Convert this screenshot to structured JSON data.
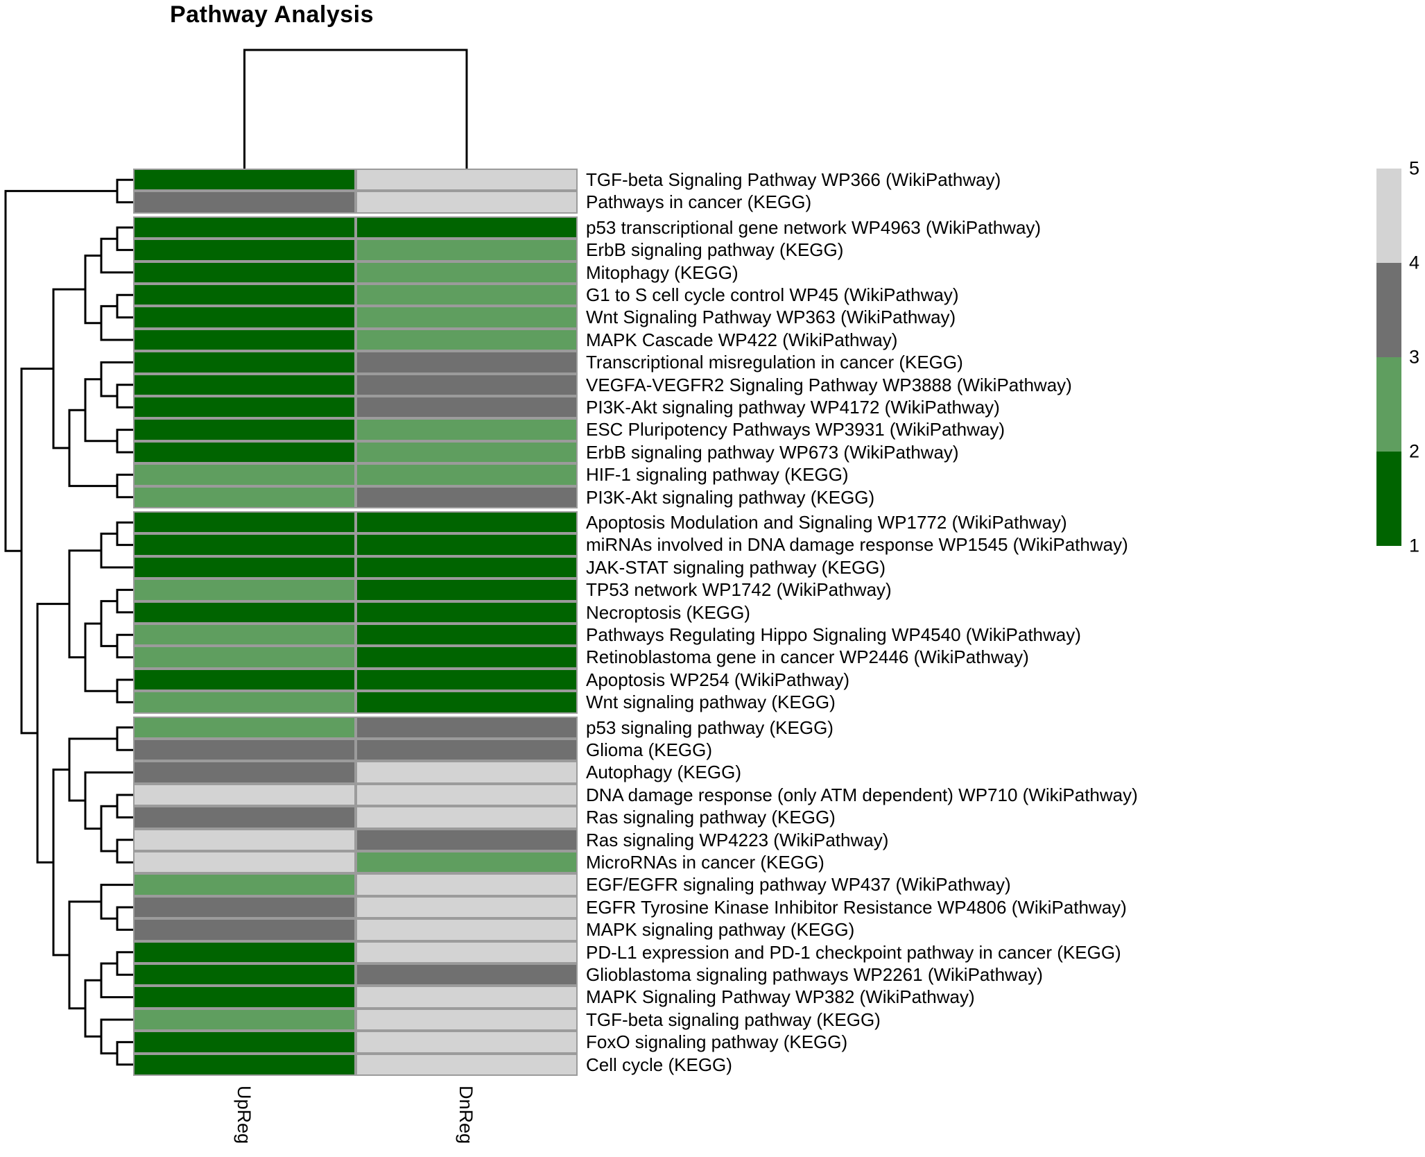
{
  "title": "Pathway Analysis",
  "columns": [
    "UpReg",
    "DnReg"
  ],
  "legend": {
    "ticks": [
      5,
      4,
      3,
      2,
      1
    ],
    "position": "right"
  },
  "chart_data": {
    "type": "heatmap",
    "title": "Pathway Analysis",
    "columns": [
      "UpReg",
      "DnReg"
    ],
    "rows": [
      {
        "label": "TGF-beta Signaling Pathway WP366 (WikiPathway)",
        "values": [
          1.5,
          4.5
        ]
      },
      {
        "label": "Pathways in cancer (KEGG)",
        "values": [
          3.5,
          4.5
        ]
      },
      {
        "label": "p53 transcriptional gene network WP4963 (WikiPathway)",
        "values": [
          1.5,
          1.5
        ]
      },
      {
        "label": "ErbB signaling pathway (KEGG)",
        "values": [
          1.5,
          2.5
        ]
      },
      {
        "label": "Mitophagy (KEGG)",
        "values": [
          1.5,
          2.5
        ]
      },
      {
        "label": "G1 to S cell cycle control WP45 (WikiPathway)",
        "values": [
          1.5,
          2.5
        ]
      },
      {
        "label": "Wnt Signaling Pathway WP363 (WikiPathway)",
        "values": [
          1.5,
          2.5
        ]
      },
      {
        "label": "MAPK Cascade WP422 (WikiPathway)",
        "values": [
          1.5,
          2.5
        ]
      },
      {
        "label": "Transcriptional misregulation in cancer (KEGG)",
        "values": [
          1.5,
          3.5
        ]
      },
      {
        "label": "VEGFA-VEGFR2 Signaling Pathway WP3888 (WikiPathway)",
        "values": [
          1.5,
          3.5
        ]
      },
      {
        "label": "PI3K-Akt signaling pathway WP4172 (WikiPathway)",
        "values": [
          1.5,
          3.5
        ]
      },
      {
        "label": "ESC Pluripotency Pathways WP3931 (WikiPathway)",
        "values": [
          1.5,
          2.5
        ]
      },
      {
        "label": "ErbB signaling pathway WP673 (WikiPathway)",
        "values": [
          1.5,
          2.5
        ]
      },
      {
        "label": "HIF-1 signaling pathway (KEGG)",
        "values": [
          2.5,
          2.5
        ]
      },
      {
        "label": "PI3K-Akt signaling pathway (KEGG)",
        "values": [
          2.5,
          3.5
        ]
      },
      {
        "label": "Apoptosis Modulation and Signaling WP1772 (WikiPathway)",
        "values": [
          1.5,
          1.5
        ]
      },
      {
        "label": "miRNAs involved in DNA damage response WP1545 (WikiPathway)",
        "values": [
          1.5,
          1.5
        ]
      },
      {
        "label": "JAK-STAT signaling pathway (KEGG)",
        "values": [
          1.5,
          1.5
        ]
      },
      {
        "label": "TP53 network WP1742 (WikiPathway)",
        "values": [
          2.5,
          1.5
        ]
      },
      {
        "label": "Necroptosis (KEGG)",
        "values": [
          1.5,
          1.5
        ]
      },
      {
        "label": "Pathways Regulating Hippo Signaling WP4540 (WikiPathway)",
        "values": [
          2.5,
          1.5
        ]
      },
      {
        "label": "Retinoblastoma gene in cancer WP2446 (WikiPathway)",
        "values": [
          2.5,
          1.5
        ]
      },
      {
        "label": "Apoptosis WP254 (WikiPathway)",
        "values": [
          1.5,
          1.5
        ]
      },
      {
        "label": "Wnt signaling pathway (KEGG)",
        "values": [
          2.5,
          1.5
        ]
      },
      {
        "label": "p53 signaling pathway (KEGG)",
        "values": [
          2.5,
          3.5
        ]
      },
      {
        "label": "Glioma  (KEGG)",
        "values": [
          3.5,
          3.5
        ]
      },
      {
        "label": "Autophagy  (KEGG)",
        "values": [
          3.5,
          4.5
        ]
      },
      {
        "label": "DNA damage response (only ATM dependent) WP710 (WikiPathway)",
        "values": [
          4.5,
          4.5
        ]
      },
      {
        "label": "Ras signaling pathway (KEGG)",
        "values": [
          3.5,
          4.5
        ]
      },
      {
        "label": "Ras signaling WP4223 (WikiPathway)",
        "values": [
          4.5,
          3.5
        ]
      },
      {
        "label": "MicroRNAs in cancer (KEGG)",
        "values": [
          4.5,
          2.5
        ]
      },
      {
        "label": "EGF/EGFR signaling pathway WP437 (WikiPathway)",
        "values": [
          2.5,
          4.5
        ]
      },
      {
        "label": "EGFR Tyrosine Kinase Inhibitor Resistance WP4806 (WikiPathway)",
        "values": [
          3.5,
          4.5
        ]
      },
      {
        "label": "MAPK signaling pathway (KEGG)",
        "values": [
          3.5,
          4.5
        ]
      },
      {
        "label": "PD-L1 expression and PD-1 checkpoint pathway in cancer (KEGG)",
        "values": [
          1.5,
          4.5
        ]
      },
      {
        "label": "Glioblastoma signaling pathways WP2261 (WikiPathway)",
        "values": [
          1.5,
          3.5
        ]
      },
      {
        "label": "MAPK Signaling Pathway WP382 (WikiPathway)",
        "values": [
          1.5,
          4.5
        ]
      },
      {
        "label": "TGF-beta signaling pathway (KEGG)",
        "values": [
          2.5,
          4.5
        ]
      },
      {
        "label": "FoxO signaling pathway (KEGG)",
        "values": [
          1.5,
          4.5
        ]
      },
      {
        "label": "Cell cycle (KEGG)",
        "values": [
          1.5,
          4.5
        ]
      }
    ],
    "scale": {
      "breaks": [
        1,
        2,
        3,
        4,
        5
      ],
      "legend_ticks": [
        5,
        4,
        3,
        2,
        1
      ],
      "bin_colors_by_floor": {
        "1": "#006400",
        "2": "#5F9E5F",
        "3": "#707070",
        "4": "#D3D3D3"
      },
      "bin_ranges": {
        "1-2": "#006400",
        "2-3": "#5F9E5F",
        "3-4": "#707070",
        "4-5": "#D3D3D3"
      }
    },
    "grid_line_color": "#9b9b9b",
    "background": "#ffffff",
    "legend_position": "right",
    "row_gaps_after": [
      2,
      15,
      24
    ],
    "columns_clustered": true,
    "rows_clustered": true,
    "col_dendrogram": [
      "UpReg",
      "DnReg"
    ],
    "row_dendrogram": [
      [
        1,
        2
      ],
      [
        [
          [
            [
              [
                3,
                4
              ],
              5
            ],
            [
              [
                6,
                7
              ],
              8
            ]
          ],
          [
            [
              [
                9,
                [
                  10,
                  11
                ]
              ],
              [
                12,
                13
              ]
            ],
            [
              14,
              15
            ]
          ]
        ],
        [
          [
            [
              [
                16,
                17
              ],
              18
            ],
            [
              [
                [
                  19,
                  20
                ],
                [
                  21,
                  22
                ]
              ],
              [
                23,
                24
              ]
            ]
          ],
          [
            [
              [
                25,
                26
              ],
              [
                27,
                [
                  [
                    28,
                    29
                  ],
                  [
                    30,
                    31
                  ]
                ]
              ]
            ],
            [
              [
                32,
                [
                  33,
                  34
                ]
              ],
              [
                [
                  [
                    35,
                    36
                  ],
                  37
                ],
                [
                  38,
                  [
                    39,
                    40
                  ]
                ]
              ]
            ]
          ]
        ]
      ]
    ]
  }
}
